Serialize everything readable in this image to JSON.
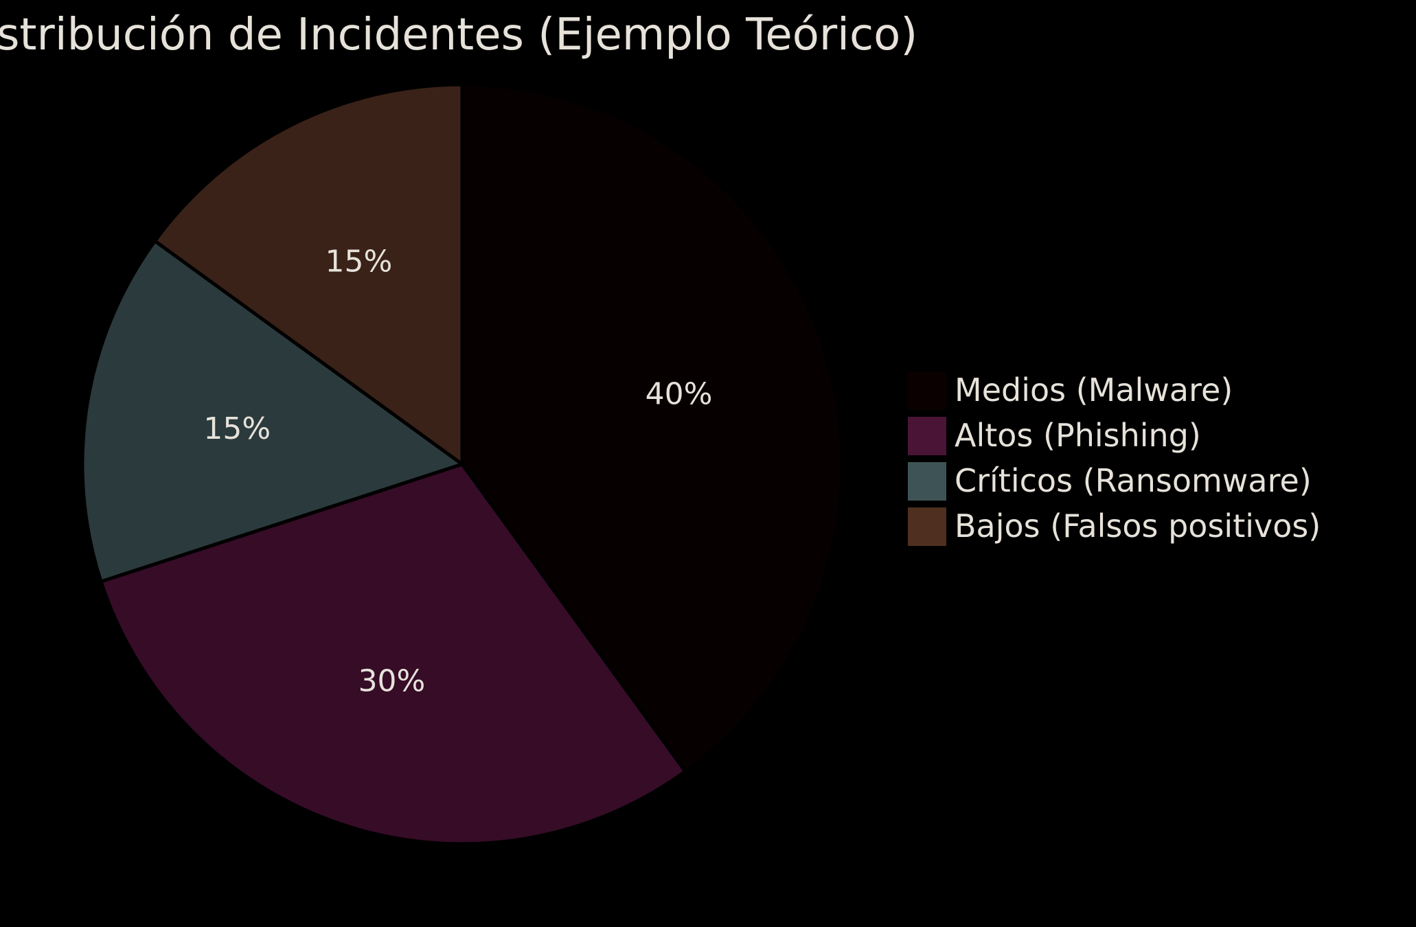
{
  "chart_data": {
    "type": "pie",
    "title": "Distribución de Incidentes (Ejemplo Teórico)",
    "categories": [
      "Medios (Malware)",
      "Altos (Phishing)",
      "Críticos (Ransomware)",
      "Bajos (Falsos positivos)"
    ],
    "values": [
      40,
      30,
      15,
      15
    ],
    "labels": [
      "40%",
      "30%",
      "15%",
      "15%"
    ],
    "slice_colors": [
      "#070000",
      "#360c27",
      "#2b3a3c",
      "#3a2218"
    ],
    "legend_colors": [
      "#0a0000",
      "#4a1437",
      "#3e5356",
      "#4f2f1f"
    ],
    "start_angle_deg": 90,
    "direction": "clockwise",
    "legend_position": "right"
  }
}
